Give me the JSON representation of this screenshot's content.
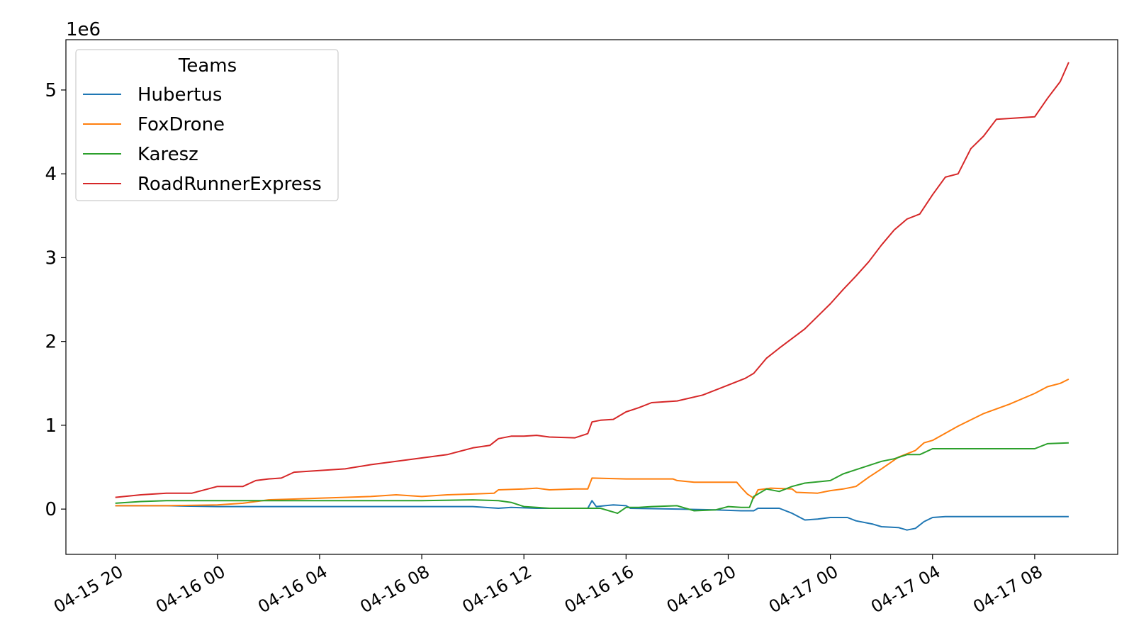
{
  "chart_data": {
    "type": "line",
    "title": "",
    "xlabel": "",
    "ylabel": "",
    "offset_label": "1e6",
    "x_ticks": [
      {
        "label": "04-15 20",
        "value": "2023-04-15 20:00"
      },
      {
        "label": "04-16 00",
        "value": "2023-04-16 00:00"
      },
      {
        "label": "04-16 04",
        "value": "2023-04-16 04:00"
      },
      {
        "label": "04-16 08",
        "value": "2023-04-16 08:00"
      },
      {
        "label": "04-16 12",
        "value": "2023-04-16 12:00"
      },
      {
        "label": "04-16 16",
        "value": "2023-04-16 16:00"
      },
      {
        "label": "04-16 20",
        "value": "2023-04-16 20:00"
      },
      {
        "label": "04-17 00",
        "value": "2023-04-17 00:00"
      },
      {
        "label": "04-17 04",
        "value": "2023-04-17 04:00"
      },
      {
        "label": "04-17 08",
        "value": "2023-04-17 08:00"
      }
    ],
    "y_ticks": [
      {
        "label": "0",
        "value": 0
      },
      {
        "label": "1",
        "value": 1000000
      },
      {
        "label": "2",
        "value": 2000000
      },
      {
        "label": "3",
        "value": 3000000
      },
      {
        "label": "4",
        "value": 4000000
      },
      {
        "label": "5",
        "value": 5000000
      }
    ],
    "xlim": [
      "2023-04-15 18:04",
      "2023-04-17 11:15"
    ],
    "ylim": [
      -540000,
      5600000
    ],
    "grid": false,
    "legend": {
      "title": "Teams",
      "position": "top-left"
    },
    "series": [
      {
        "name": "Hubertus",
        "color": "#1f77b4",
        "points": [
          [
            "2023-04-15 20:00",
            40000
          ],
          [
            "2023-04-15 22:00",
            40000
          ],
          [
            "2023-04-16 00:00",
            30000
          ],
          [
            "2023-04-16 04:00",
            30000
          ],
          [
            "2023-04-16 08:00",
            30000
          ],
          [
            "2023-04-16 10:00",
            30000
          ],
          [
            "2023-04-16 11:00",
            10000
          ],
          [
            "2023-04-16 11:30",
            20000
          ],
          [
            "2023-04-16 12:30",
            10000
          ],
          [
            "2023-04-16 14:30",
            10000
          ],
          [
            "2023-04-16 14:40",
            100000
          ],
          [
            "2023-04-16 14:50",
            30000
          ],
          [
            "2023-04-16 15:10",
            40000
          ],
          [
            "2023-04-16 15:30",
            50000
          ],
          [
            "2023-04-16 16:00",
            40000
          ],
          [
            "2023-04-16 16:10",
            10000
          ],
          [
            "2023-04-16 18:00",
            0
          ],
          [
            "2023-04-16 19:30",
            -10000
          ],
          [
            "2023-04-16 20:30",
            -20000
          ],
          [
            "2023-04-16 21:00",
            -20000
          ],
          [
            "2023-04-16 21:10",
            10000
          ],
          [
            "2023-04-16 22:00",
            10000
          ],
          [
            "2023-04-16 22:30",
            -50000
          ],
          [
            "2023-04-16 23:00",
            -130000
          ],
          [
            "2023-04-16 23:30",
            -120000
          ],
          [
            "2023-04-17 00:00",
            -100000
          ],
          [
            "2023-04-17 00:40",
            -100000
          ],
          [
            "2023-04-17 01:00",
            -140000
          ],
          [
            "2023-04-17 01:40",
            -180000
          ],
          [
            "2023-04-17 02:00",
            -210000
          ],
          [
            "2023-04-17 02:40",
            -220000
          ],
          [
            "2023-04-17 03:00",
            -250000
          ],
          [
            "2023-04-17 03:20",
            -230000
          ],
          [
            "2023-04-17 03:40",
            -150000
          ],
          [
            "2023-04-17 04:00",
            -100000
          ],
          [
            "2023-04-17 04:30",
            -90000
          ],
          [
            "2023-04-17 06:00",
            -90000
          ],
          [
            "2023-04-17 08:00",
            -90000
          ],
          [
            "2023-04-17 09:20",
            -90000
          ]
        ]
      },
      {
        "name": "FoxDrone",
        "color": "#ff7f0e",
        "points": [
          [
            "2023-04-15 20:00",
            40000
          ],
          [
            "2023-04-15 22:00",
            40000
          ],
          [
            "2023-04-16 00:00",
            50000
          ],
          [
            "2023-04-16 01:00",
            70000
          ],
          [
            "2023-04-16 01:30",
            90000
          ],
          [
            "2023-04-16 02:00",
            110000
          ],
          [
            "2023-04-16 03:00",
            120000
          ],
          [
            "2023-04-16 04:00",
            130000
          ],
          [
            "2023-04-16 06:00",
            150000
          ],
          [
            "2023-04-16 07:00",
            170000
          ],
          [
            "2023-04-16 08:00",
            150000
          ],
          [
            "2023-04-16 09:00",
            170000
          ],
          [
            "2023-04-16 10:00",
            180000
          ],
          [
            "2023-04-16 10:50",
            190000
          ],
          [
            "2023-04-16 11:00",
            230000
          ],
          [
            "2023-04-16 12:00",
            240000
          ],
          [
            "2023-04-16 12:30",
            250000
          ],
          [
            "2023-04-16 13:00",
            230000
          ],
          [
            "2023-04-16 14:00",
            240000
          ],
          [
            "2023-04-16 14:30",
            240000
          ],
          [
            "2023-04-16 14:40",
            370000
          ],
          [
            "2023-04-16 16:00",
            360000
          ],
          [
            "2023-04-16 17:00",
            360000
          ],
          [
            "2023-04-16 17:50",
            360000
          ],
          [
            "2023-04-16 18:00",
            340000
          ],
          [
            "2023-04-16 18:40",
            320000
          ],
          [
            "2023-04-16 20:20",
            320000
          ],
          [
            "2023-04-16 20:30",
            260000
          ],
          [
            "2023-04-16 20:45",
            180000
          ],
          [
            "2023-04-16 21:00",
            130000
          ],
          [
            "2023-04-16 21:10",
            230000
          ],
          [
            "2023-04-16 21:40",
            250000
          ],
          [
            "2023-04-16 22:30",
            240000
          ],
          [
            "2023-04-16 22:40",
            200000
          ],
          [
            "2023-04-16 23:30",
            190000
          ],
          [
            "2023-04-17 00:00",
            220000
          ],
          [
            "2023-04-17 00:30",
            240000
          ],
          [
            "2023-04-17 01:00",
            270000
          ],
          [
            "2023-04-17 01:30",
            380000
          ],
          [
            "2023-04-17 02:00",
            480000
          ],
          [
            "2023-04-17 02:40",
            620000
          ],
          [
            "2023-04-17 03:20",
            700000
          ],
          [
            "2023-04-17 03:40",
            790000
          ],
          [
            "2023-04-17 04:00",
            820000
          ],
          [
            "2023-04-17 05:00",
            990000
          ],
          [
            "2023-04-17 06:00",
            1140000
          ],
          [
            "2023-04-17 07:00",
            1250000
          ],
          [
            "2023-04-17 08:00",
            1380000
          ],
          [
            "2023-04-17 08:30",
            1460000
          ],
          [
            "2023-04-17 09:00",
            1500000
          ],
          [
            "2023-04-17 09:20",
            1550000
          ]
        ]
      },
      {
        "name": "Karesz",
        "color": "#2ca02c",
        "points": [
          [
            "2023-04-15 20:00",
            70000
          ],
          [
            "2023-04-15 21:00",
            90000
          ],
          [
            "2023-04-15 22:00",
            100000
          ],
          [
            "2023-04-16 00:00",
            100000
          ],
          [
            "2023-04-16 04:00",
            100000
          ],
          [
            "2023-04-16 08:00",
            100000
          ],
          [
            "2023-04-16 10:00",
            110000
          ],
          [
            "2023-04-16 11:00",
            100000
          ],
          [
            "2023-04-16 11:30",
            80000
          ],
          [
            "2023-04-16 12:00",
            30000
          ],
          [
            "2023-04-16 13:00",
            10000
          ],
          [
            "2023-04-16 14:00",
            10000
          ],
          [
            "2023-04-16 15:00",
            10000
          ],
          [
            "2023-04-16 15:40",
            -50000
          ],
          [
            "2023-04-16 16:00",
            20000
          ],
          [
            "2023-04-16 16:30",
            20000
          ],
          [
            "2023-04-16 17:00",
            30000
          ],
          [
            "2023-04-16 18:00",
            40000
          ],
          [
            "2023-04-16 18:40",
            -20000
          ],
          [
            "2023-04-16 19:30",
            -10000
          ],
          [
            "2023-04-16 20:00",
            30000
          ],
          [
            "2023-04-16 20:30",
            20000
          ],
          [
            "2023-04-16 20:50",
            20000
          ],
          [
            "2023-04-16 21:00",
            150000
          ],
          [
            "2023-04-16 21:30",
            240000
          ],
          [
            "2023-04-16 22:00",
            210000
          ],
          [
            "2023-04-16 22:30",
            270000
          ],
          [
            "2023-04-16 23:00",
            310000
          ],
          [
            "2023-04-16 23:40",
            330000
          ],
          [
            "2023-04-17 00:00",
            340000
          ],
          [
            "2023-04-17 00:30",
            420000
          ],
          [
            "2023-04-17 01:00",
            470000
          ],
          [
            "2023-04-17 01:30",
            520000
          ],
          [
            "2023-04-17 02:00",
            570000
          ],
          [
            "2023-04-17 02:30",
            600000
          ],
          [
            "2023-04-17 03:00",
            650000
          ],
          [
            "2023-04-17 03:30",
            650000
          ],
          [
            "2023-04-17 04:00",
            720000
          ],
          [
            "2023-04-17 05:00",
            720000
          ],
          [
            "2023-04-17 06:00",
            720000
          ],
          [
            "2023-04-17 08:00",
            720000
          ],
          [
            "2023-04-17 08:30",
            780000
          ],
          [
            "2023-04-17 09:20",
            790000
          ]
        ]
      },
      {
        "name": "RoadRunnerExpress",
        "color": "#d62728",
        "points": [
          [
            "2023-04-15 20:00",
            140000
          ],
          [
            "2023-04-15 21:00",
            170000
          ],
          [
            "2023-04-15 22:00",
            190000
          ],
          [
            "2023-04-15 23:00",
            190000
          ],
          [
            "2023-04-16 00:00",
            270000
          ],
          [
            "2023-04-16 01:00",
            270000
          ],
          [
            "2023-04-16 01:30",
            340000
          ],
          [
            "2023-04-16 02:00",
            360000
          ],
          [
            "2023-04-16 02:30",
            370000
          ],
          [
            "2023-04-16 03:00",
            440000
          ],
          [
            "2023-04-16 04:00",
            460000
          ],
          [
            "2023-04-16 05:00",
            480000
          ],
          [
            "2023-04-16 06:00",
            530000
          ],
          [
            "2023-04-16 07:00",
            570000
          ],
          [
            "2023-04-16 08:00",
            610000
          ],
          [
            "2023-04-16 09:00",
            650000
          ],
          [
            "2023-04-16 10:00",
            730000
          ],
          [
            "2023-04-16 10:40",
            760000
          ],
          [
            "2023-04-16 11:00",
            840000
          ],
          [
            "2023-04-16 11:30",
            870000
          ],
          [
            "2023-04-16 12:00",
            870000
          ],
          [
            "2023-04-16 12:30",
            880000
          ],
          [
            "2023-04-16 13:00",
            860000
          ],
          [
            "2023-04-16 14:00",
            850000
          ],
          [
            "2023-04-16 14:30",
            900000
          ],
          [
            "2023-04-16 14:40",
            1040000
          ],
          [
            "2023-04-16 15:00",
            1060000
          ],
          [
            "2023-04-16 15:30",
            1070000
          ],
          [
            "2023-04-16 16:00",
            1160000
          ],
          [
            "2023-04-16 16:30",
            1210000
          ],
          [
            "2023-04-16 17:00",
            1270000
          ],
          [
            "2023-04-16 18:00",
            1290000
          ],
          [
            "2023-04-16 19:00",
            1360000
          ],
          [
            "2023-04-16 20:00",
            1480000
          ],
          [
            "2023-04-16 20:40",
            1560000
          ],
          [
            "2023-04-16 21:00",
            1620000
          ],
          [
            "2023-04-16 21:30",
            1800000
          ],
          [
            "2023-04-16 22:00",
            1920000
          ],
          [
            "2023-04-16 23:00",
            2150000
          ],
          [
            "2023-04-16 23:40",
            2350000
          ],
          [
            "2023-04-17 00:00",
            2450000
          ],
          [
            "2023-04-17 00:30",
            2620000
          ],
          [
            "2023-04-17 01:00",
            2780000
          ],
          [
            "2023-04-17 01:30",
            2950000
          ],
          [
            "2023-04-17 02:00",
            3150000
          ],
          [
            "2023-04-17 02:30",
            3330000
          ],
          [
            "2023-04-17 03:00",
            3460000
          ],
          [
            "2023-04-17 03:30",
            3520000
          ],
          [
            "2023-04-17 04:00",
            3750000
          ],
          [
            "2023-04-17 04:30",
            3960000
          ],
          [
            "2023-04-17 05:00",
            4000000
          ],
          [
            "2023-04-17 05:30",
            4300000
          ],
          [
            "2023-04-17 06:00",
            4450000
          ],
          [
            "2023-04-17 06:30",
            4650000
          ],
          [
            "2023-04-17 07:00",
            4660000
          ],
          [
            "2023-04-17 08:00",
            4680000
          ],
          [
            "2023-04-17 08:30",
            4900000
          ],
          [
            "2023-04-17 09:00",
            5100000
          ],
          [
            "2023-04-17 09:20",
            5330000
          ]
        ]
      }
    ]
  }
}
